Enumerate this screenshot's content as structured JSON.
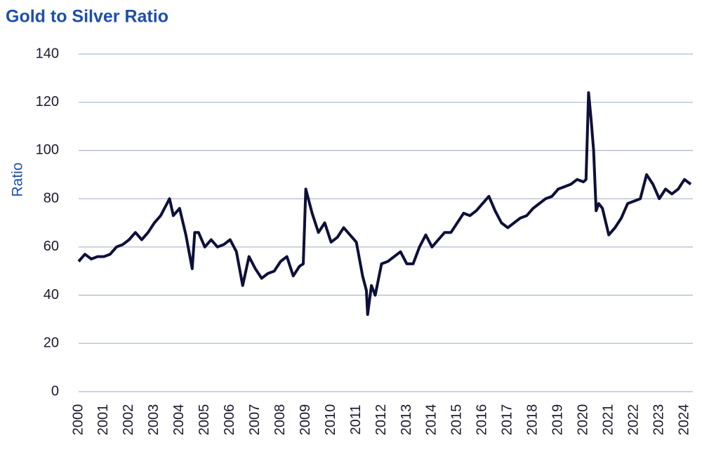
{
  "chart_data": {
    "type": "line",
    "title": "Gold to Silver Ratio",
    "y_label": "Ratio",
    "color": "#0d1038",
    "xlim": [
      2000,
      2024.3
    ],
    "xticks": [
      2000,
      2001,
      2002,
      2003,
      2004,
      2005,
      2006,
      2007,
      2008,
      2009,
      2010,
      2011,
      2012,
      2013,
      2014,
      2015,
      2016,
      2017,
      2018,
      2019,
      2020,
      2021,
      2022,
      2023,
      2024
    ],
    "ylim": [
      0,
      140
    ],
    "yticks": [
      0,
      20,
      40,
      60,
      80,
      100,
      120,
      140
    ],
    "grid": true,
    "x": [
      2000.0,
      2000.25,
      2000.5,
      2000.75,
      2001.0,
      2001.25,
      2001.5,
      2001.75,
      2002.0,
      2002.25,
      2002.5,
      2002.75,
      2003.0,
      2003.25,
      2003.5,
      2003.6,
      2003.75,
      2004.0,
      2004.25,
      2004.5,
      2004.6,
      2004.75,
      2005.0,
      2005.25,
      2005.5,
      2005.75,
      2006.0,
      2006.25,
      2006.5,
      2006.75,
      2007.0,
      2007.25,
      2007.5,
      2007.75,
      2008.0,
      2008.25,
      2008.5,
      2008.75,
      2008.9,
      2009.0,
      2009.25,
      2009.5,
      2009.75,
      2010.0,
      2010.25,
      2010.5,
      2010.75,
      2011.0,
      2011.25,
      2011.4,
      2011.45,
      2011.6,
      2011.75,
      2012.0,
      2012.25,
      2012.5,
      2012.75,
      2013.0,
      2013.25,
      2013.5,
      2013.75,
      2014.0,
      2014.25,
      2014.5,
      2014.75,
      2015.0,
      2015.25,
      2015.5,
      2015.75,
      2016.0,
      2016.25,
      2016.5,
      2016.75,
      2017.0,
      2017.25,
      2017.5,
      2017.75,
      2018.0,
      2018.25,
      2018.5,
      2018.75,
      2019.0,
      2019.25,
      2019.5,
      2019.75,
      2020.0,
      2020.1,
      2020.2,
      2020.3,
      2020.4,
      2020.5,
      2020.6,
      2020.75,
      2021.0,
      2021.25,
      2021.5,
      2021.75,
      2022.0,
      2022.25,
      2022.5,
      2022.75,
      2023.0,
      2023.25,
      2023.5,
      2023.75,
      2024.0,
      2024.25
    ],
    "values": [
      54,
      57,
      55,
      56,
      56,
      57,
      60,
      61,
      63,
      66,
      63,
      66,
      70,
      73,
      78,
      80,
      73,
      76,
      65,
      51,
      66,
      66,
      60,
      63,
      60,
      61,
      63,
      58,
      44,
      56,
      51,
      47,
      49,
      50,
      54,
      56,
      48,
      52,
      53,
      84,
      74,
      66,
      70,
      62,
      64,
      68,
      65,
      62,
      48,
      42,
      32,
      44,
      40,
      53,
      54,
      56,
      58,
      53,
      53,
      60,
      65,
      60,
      63,
      66,
      66,
      70,
      74,
      73,
      75,
      78,
      81,
      75,
      70,
      68,
      70,
      72,
      73,
      76,
      78,
      80,
      81,
      84,
      85,
      86,
      88,
      87,
      88,
      124,
      113,
      100,
      75,
      78,
      76,
      65,
      68,
      72,
      78,
      79,
      80,
      90,
      86,
      80,
      84,
      82,
      84,
      88,
      86
    ]
  }
}
